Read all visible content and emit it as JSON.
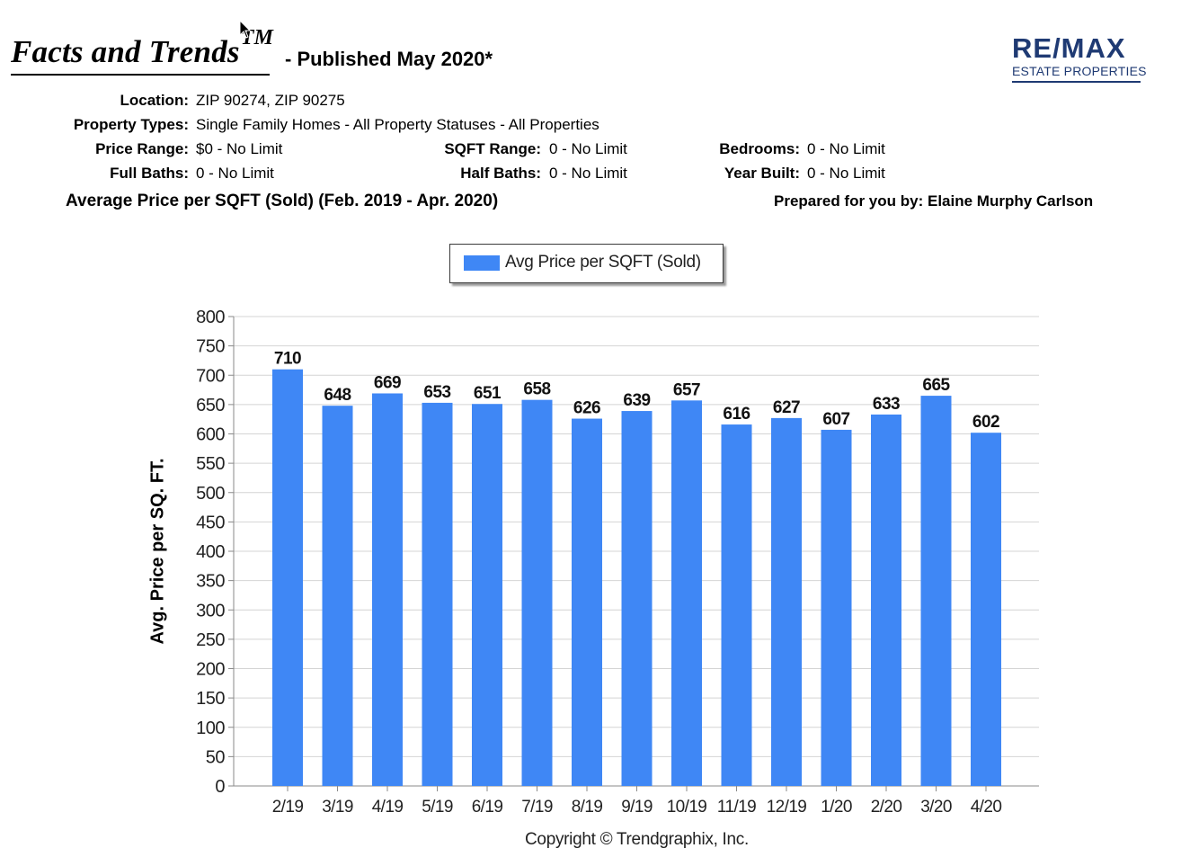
{
  "header": {
    "brand": "Facts and Trends",
    "brand_mark": "TM",
    "published": "- Published May 2020*"
  },
  "logo": {
    "top": "RE/MAX",
    "bottom": "ESTATE PROPERTIES",
    "color": "#1f3a73"
  },
  "filters": {
    "location_label": "Location:",
    "location_value": "ZIP 90274, ZIP 90275",
    "property_types_label": "Property Types:",
    "property_types_value": "Single Family Homes - All Property Statuses - All Properties",
    "price_range_label": "Price Range:",
    "price_range_value": "$0 - No Limit",
    "sqft_range_label": "SQFT Range:",
    "sqft_range_value": "0 - No Limit",
    "bedrooms_label": "Bedrooms:",
    "bedrooms_value": "0 - No Limit",
    "full_baths_label": "Full Baths:",
    "full_baths_value": "0 - No Limit",
    "half_baths_label": "Half Baths:",
    "half_baths_value": "0 - No Limit",
    "year_built_label": "Year Built:",
    "year_built_value": "0 - No Limit"
  },
  "prepared_by": "Prepared for you by: Elaine Murphy Carlson",
  "copyright": "Copyright © Trendgraphix, Inc.",
  "chart_data": {
    "type": "bar",
    "title": "Average Price per SQFT (Sold) (Feb. 2019 - Apr. 2020)",
    "xlabel": "",
    "ylabel": "Avg. Price per SQ. FT.",
    "ylim": [
      0,
      800
    ],
    "yticks": [
      0,
      50,
      100,
      150,
      200,
      250,
      300,
      350,
      400,
      450,
      500,
      550,
      600,
      650,
      700,
      750,
      800
    ],
    "grid": true,
    "legend": "top-center",
    "bar_color": "#3f87f5",
    "categories": [
      "2/19",
      "3/19",
      "4/19",
      "5/19",
      "6/19",
      "7/19",
      "8/19",
      "9/19",
      "10/19",
      "11/19",
      "12/19",
      "1/20",
      "2/20",
      "3/20",
      "4/20"
    ],
    "series": [
      {
        "name": "Avg Price per SQFT (Sold)",
        "values": [
          710,
          648,
          669,
          653,
          651,
          658,
          626,
          639,
          657,
          616,
          627,
          607,
          633,
          665,
          602
        ]
      }
    ]
  }
}
